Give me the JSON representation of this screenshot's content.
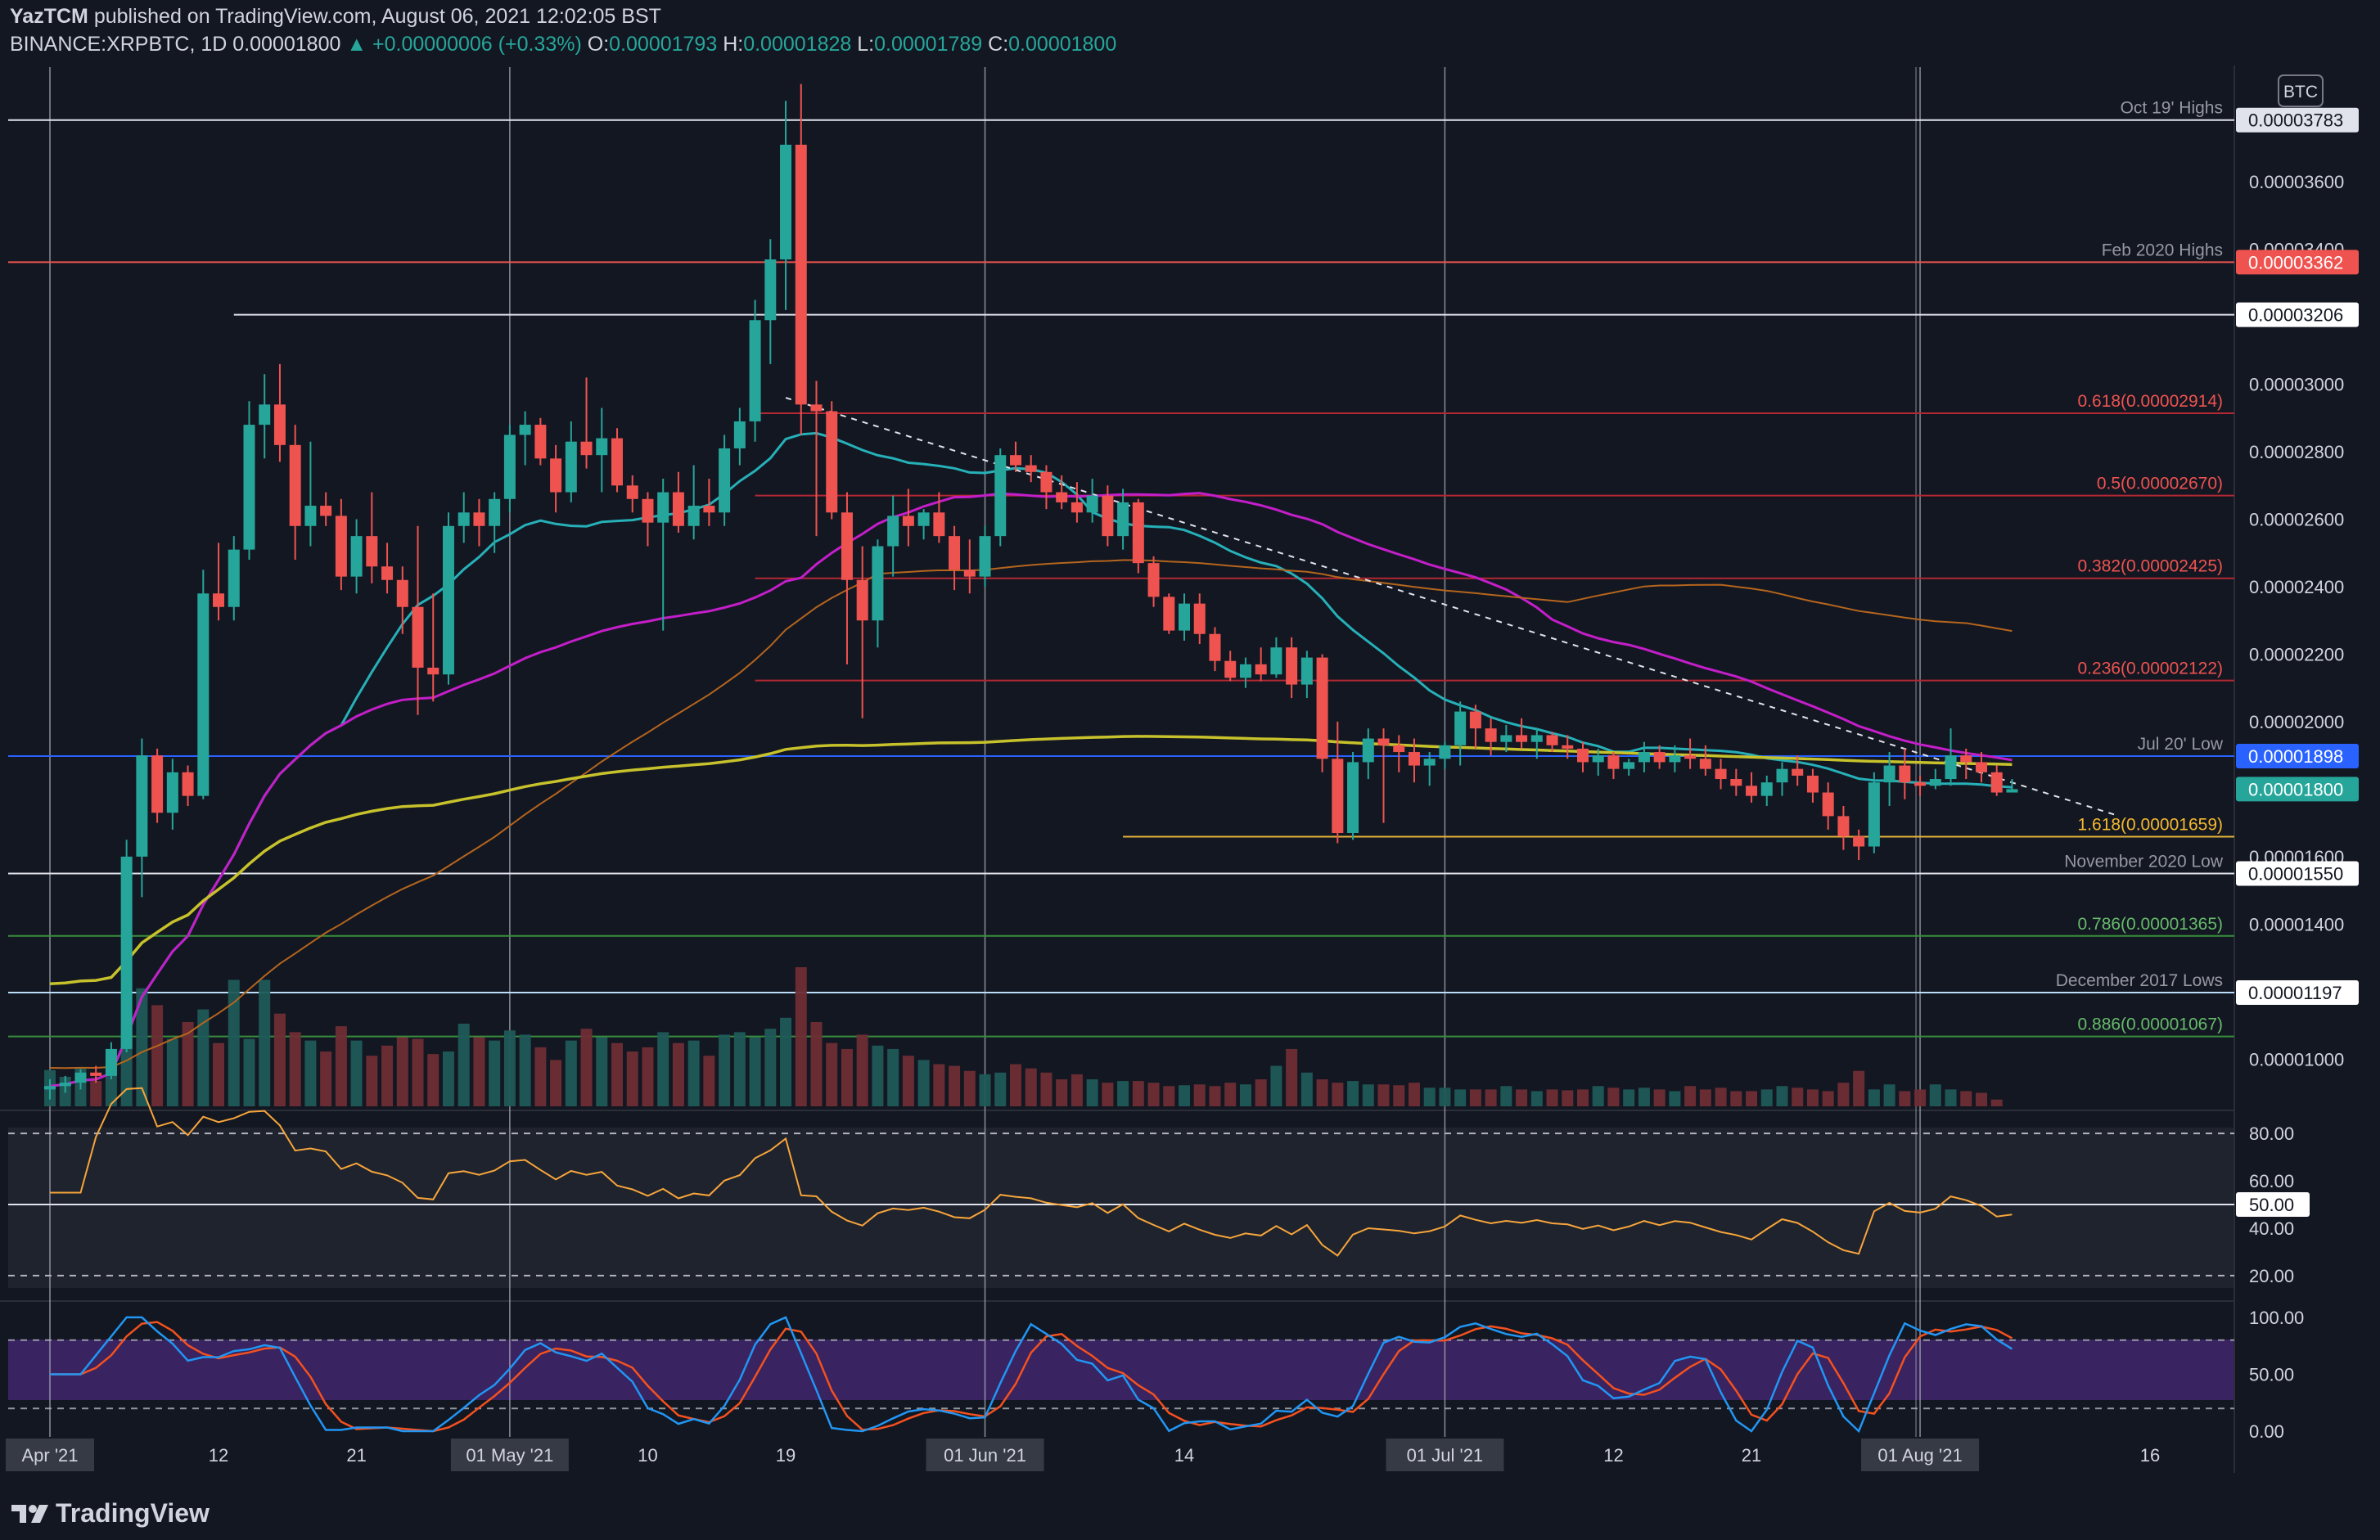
{
  "header": {
    "publisher": "YazTCM",
    "published_text": "published on TradingView.com, August 06, 2021 12:02:05 BST",
    "symbol": "BINANCE:XRPBTC, 1D",
    "last": "0.00001800",
    "change": "▲ +0.00000006 (+0.33%)",
    "o_label": "O:",
    "o": "0.00001793",
    "h_label": "H:",
    "h": "0.00001828",
    "l_label": "L:",
    "l": "0.00001789",
    "c_label": "C:",
    "c": "0.00001800"
  },
  "currency_badge": "BTC",
  "footer": {
    "brand": "TradingView",
    "logo_icon": "tradingview-logo-icon"
  },
  "colors": {
    "background": "#131722",
    "up": "#26a69a",
    "down": "#ef5350",
    "text": "#d1d4dc",
    "ma20": "#26b0b8",
    "ma50": "#c41ec9",
    "ma100": "#b5651d",
    "ma200": "#c7c22b",
    "rsi": "#f7a53a",
    "stoch_k": "#2196f3",
    "stoch_d": "#f4511e"
  },
  "chart_data": {
    "type": "candlestick",
    "title": "",
    "ylim": [
      8.6e-06,
      3.94e-05
    ],
    "first_date": "2021-04-01",
    "x_ticks": [
      {
        "label": "Apr '21",
        "date": "2021-04-01",
        "boxed": true
      },
      {
        "label": "12",
        "date": "2021-04-12"
      },
      {
        "label": "21",
        "date": "2021-04-21"
      },
      {
        "label": "01 May '21",
        "date": "2021-05-01",
        "boxed": true
      },
      {
        "label": "10",
        "date": "2021-05-10"
      },
      {
        "label": "19",
        "date": "2021-05-19"
      },
      {
        "label": "01 Jun '21",
        "date": "2021-06-01",
        "boxed": true
      },
      {
        "label": "14",
        "date": "2021-06-14"
      },
      {
        "label": "01 Jul '21",
        "date": "2021-07-01",
        "boxed": true
      },
      {
        "label": "12",
        "date": "2021-07-12"
      },
      {
        "label": "21",
        "date": "2021-07-21"
      },
      {
        "label": "01 Aug '21",
        "date": "2021-08-01",
        "boxed": true
      },
      {
        "label": "16",
        "date": "2021-08-16"
      }
    ],
    "y_ticks": [
      "0.00003600",
      "0.00003400",
      "0.00003000",
      "0.00002800",
      "0.00002600",
      "0.00002400",
      "0.00002200",
      "0.00002000",
      "0.00001600",
      "0.00001400",
      "0.00001000"
    ],
    "tick_values": [
      3.6e-05,
      3.4e-05,
      3e-05,
      2.8e-05,
      2.6e-05,
      2.4e-05,
      2.2e-05,
      2e-05,
      1.6e-05,
      1.4e-05,
      1e-05
    ],
    "levels": [
      {
        "label": "Oct 19' Highs",
        "value": 3.783e-05,
        "tag": "0.00003783",
        "color": "#e0e3eb",
        "tag_bg": "#e0e3eb",
        "tag_fg": "#131722",
        "from": "2021-04-01"
      },
      {
        "label": "Feb 2020 Highs",
        "value": 3.362e-05,
        "tag": "0.00003362",
        "color": "#ef5350",
        "tag_bg": "#ef5350",
        "tag_fg": "#ffffff",
        "from": "2021-04-01"
      },
      {
        "label": "",
        "value": 3.206e-05,
        "tag": "0.00003206",
        "color": "#e0e3eb",
        "tag_bg": "#ffffff",
        "tag_fg": "#131722",
        "from": "2021-04-13"
      },
      {
        "label": "0.618(0.00002914)",
        "value": 2.914e-05,
        "tag": "",
        "color": "#b22833",
        "label_color": "#ef5350",
        "from": "2021-05-17"
      },
      {
        "label": "0.5(0.00002670)",
        "value": 2.67e-05,
        "tag": "",
        "color": "#b22833",
        "label_color": "#ef5350",
        "from": "2021-05-17"
      },
      {
        "label": "0.382(0.00002425)",
        "value": 2.425e-05,
        "tag": "",
        "color": "#b22833",
        "label_color": "#ef5350",
        "from": "2021-05-17"
      },
      {
        "label": "0.236(0.00002122)",
        "value": 2.122e-05,
        "tag": "",
        "color": "#b22833",
        "label_color": "#ef5350",
        "from": "2021-05-17"
      },
      {
        "label": "Jul 20' Low",
        "value": 1.898e-05,
        "tag": "0.00001898",
        "color": "#2962ff",
        "tag_bg": "#2962ff",
        "tag_fg": "#ffffff",
        "from": "2021-04-01"
      },
      {
        "label": "",
        "value": 1.8e-05,
        "tag": "0.00001800",
        "color": null,
        "tag_bg": "#26a69a",
        "tag_fg": "#ffffff"
      },
      {
        "label": "1.618(0.00001659)",
        "value": 1.659e-05,
        "tag": "",
        "color": "#e6b33a",
        "label_color": "#f5b82e",
        "from": "2021-06-10"
      },
      {
        "label": "November 2020 Low",
        "value": 1.55e-05,
        "tag": "0.00001550",
        "color": "#e0e3eb",
        "tag_bg": "#ffffff",
        "tag_fg": "#131722",
        "from": "2021-04-01"
      },
      {
        "label": "0.786(0.00001365)",
        "value": 1.365e-05,
        "tag": "",
        "color": "#388e3c",
        "label_color": "#66bb6a",
        "from": "2021-04-01"
      },
      {
        "label": "December 2017 Lows",
        "value": 1.197e-05,
        "tag": "0.00001197",
        "color": "#bbdefb",
        "tag_bg": "#ffffff",
        "tag_fg": "#131722",
        "from": "2021-04-01"
      },
      {
        "label": "0.886(0.00001067)",
        "value": 1.067e-05,
        "tag": "",
        "color": "#388e3c",
        "label_color": "#66bb6a",
        "from": "2021-04-01"
      }
    ],
    "trendline": {
      "from": [
        "2021-05-19",
        2.96e-05
      ],
      "to": [
        "2021-08-14",
        1.72e-05
      ]
    },
    "candles": [
      [
        9.1e-06,
        9.4e-06,
        8.8e-06,
        9.2e-06
      ],
      [
        9.2e-06,
        9.5e-06,
        9e-06,
        9.3e-06
      ],
      [
        9.3e-06,
        9.7e-06,
        9.1e-06,
        9.6e-06
      ],
      [
        9.6e-06,
        9.8e-06,
        9.3e-06,
        9.5e-06
      ],
      [
        9.5e-06,
        1.05e-05,
        9.4e-06,
        1.03e-05
      ],
      [
        1.03e-05,
        1.65e-05,
        1.02e-05,
        1.6e-05
      ],
      [
        1.6e-05,
        1.95e-05,
        1.48e-05,
        1.9e-05
      ],
      [
        1.9e-05,
        1.92e-05,
        1.7e-05,
        1.73e-05
      ],
      [
        1.73e-05,
        1.89e-05,
        1.68e-05,
        1.85e-05
      ],
      [
        1.85e-05,
        1.87e-05,
        1.75e-05,
        1.78e-05
      ],
      [
        1.78e-05,
        2.45e-05,
        1.77e-05,
        2.38e-05
      ],
      [
        2.38e-05,
        2.53e-05,
        2.3e-05,
        2.34e-05
      ],
      [
        2.34e-05,
        2.55e-05,
        2.3e-05,
        2.51e-05
      ],
      [
        2.51e-05,
        2.95e-05,
        2.48e-05,
        2.88e-05
      ],
      [
        2.88e-05,
        3.03e-05,
        2.78e-05,
        2.94e-05
      ],
      [
        2.94e-05,
        3.06e-05,
        2.77e-05,
        2.82e-05
      ],
      [
        2.82e-05,
        2.88e-05,
        2.48e-05,
        2.58e-05
      ],
      [
        2.58e-05,
        2.83e-05,
        2.52e-05,
        2.64e-05
      ],
      [
        2.64e-05,
        2.68e-05,
        2.58e-05,
        2.61e-05
      ],
      [
        2.61e-05,
        2.66e-05,
        2.39e-05,
        2.43e-05
      ],
      [
        2.43e-05,
        2.6e-05,
        2.38e-05,
        2.55e-05
      ],
      [
        2.55e-05,
        2.68e-05,
        2.41e-05,
        2.46e-05
      ],
      [
        2.46e-05,
        2.53e-05,
        2.38e-05,
        2.42e-05
      ],
      [
        2.42e-05,
        2.46e-05,
        2.26e-05,
        2.34e-05
      ],
      [
        2.34e-05,
        2.58e-05,
        2.02e-05,
        2.16e-05
      ],
      [
        2.16e-05,
        2.38e-05,
        2.06e-05,
        2.14e-05
      ],
      [
        2.14e-05,
        2.62e-05,
        2.11e-05,
        2.58e-05
      ],
      [
        2.58e-05,
        2.68e-05,
        2.53e-05,
        2.62e-05
      ],
      [
        2.62e-05,
        2.66e-05,
        2.52e-05,
        2.58e-05
      ],
      [
        2.58e-05,
        2.68e-05,
        2.5e-05,
        2.66e-05
      ],
      [
        2.66e-05,
        2.88e-05,
        2.62e-05,
        2.85e-05
      ],
      [
        2.85e-05,
        2.92e-05,
        2.76e-05,
        2.88e-05
      ],
      [
        2.88e-05,
        2.9e-05,
        2.76e-05,
        2.78e-05
      ],
      [
        2.78e-05,
        2.82e-05,
        2.62e-05,
        2.68e-05
      ],
      [
        2.68e-05,
        2.89e-05,
        2.65e-05,
        2.83e-05
      ],
      [
        2.83e-05,
        3.02e-05,
        2.75e-05,
        2.79e-05
      ],
      [
        2.79e-05,
        2.93e-05,
        2.68e-05,
        2.84e-05
      ],
      [
        2.84e-05,
        2.87e-05,
        2.68e-05,
        2.7e-05
      ],
      [
        2.7e-05,
        2.73e-05,
        2.62e-05,
        2.66e-05
      ],
      [
        2.66e-05,
        2.68e-05,
        2.52e-05,
        2.59e-05
      ],
      [
        2.59e-05,
        2.72e-05,
        2.27e-05,
        2.68e-05
      ],
      [
        2.68e-05,
        2.74e-05,
        2.56e-05,
        2.58e-05
      ],
      [
        2.58e-05,
        2.76e-05,
        2.54e-05,
        2.64e-05
      ],
      [
        2.64e-05,
        2.72e-05,
        2.58e-05,
        2.62e-05
      ],
      [
        2.62e-05,
        2.85e-05,
        2.58e-05,
        2.81e-05
      ],
      [
        2.81e-05,
        2.93e-05,
        2.76e-05,
        2.89e-05
      ],
      [
        2.89e-05,
        3.25e-05,
        2.83e-05,
        3.19e-05
      ],
      [
        3.19e-05,
        3.43e-05,
        3.06e-05,
        3.37e-05
      ],
      [
        3.37e-05,
        3.84e-05,
        3.22e-05,
        3.71e-05
      ],
      [
        3.71e-05,
        3.89e-05,
        2.85e-05,
        2.94e-05
      ],
      [
        2.94e-05,
        3.01e-05,
        2.55e-05,
        2.92e-05
      ],
      [
        2.92e-05,
        2.95e-05,
        2.6e-05,
        2.62e-05
      ],
      [
        2.62e-05,
        2.68e-05,
        2.17e-05,
        2.42e-05
      ],
      [
        2.42e-05,
        2.52e-05,
        2.01e-05,
        2.3e-05
      ],
      [
        2.3e-05,
        2.54e-05,
        2.22e-05,
        2.52e-05
      ],
      [
        2.52e-05,
        2.67e-05,
        2.43e-05,
        2.61e-05
      ],
      [
        2.61e-05,
        2.69e-05,
        2.52e-05,
        2.58e-05
      ],
      [
        2.58e-05,
        2.63e-05,
        2.54e-05,
        2.62e-05
      ],
      [
        2.62e-05,
        2.68e-05,
        2.53e-05,
        2.55e-05
      ],
      [
        2.55e-05,
        2.58e-05,
        2.39e-05,
        2.45e-05
      ],
      [
        2.45e-05,
        2.54e-05,
        2.38e-05,
        2.43e-05
      ],
      [
        2.43e-05,
        2.58e-05,
        2.4e-05,
        2.55e-05
      ],
      [
        2.55e-05,
        2.81e-05,
        2.52e-05,
        2.79e-05
      ],
      [
        2.79e-05,
        2.83e-05,
        2.74e-05,
        2.76e-05
      ],
      [
        2.76e-05,
        2.79e-05,
        2.71e-05,
        2.74e-05
      ],
      [
        2.74e-05,
        2.76e-05,
        2.63e-05,
        2.68e-05
      ],
      [
        2.68e-05,
        2.73e-05,
        2.63e-05,
        2.65e-05
      ],
      [
        2.65e-05,
        2.71e-05,
        2.59e-05,
        2.62e-05
      ],
      [
        2.62e-05,
        2.72e-05,
        2.59e-05,
        2.67e-05
      ],
      [
        2.67e-05,
        2.7e-05,
        2.52e-05,
        2.55e-05
      ],
      [
        2.55e-05,
        2.69e-05,
        2.51e-05,
        2.65e-05
      ],
      [
        2.65e-05,
        2.66e-05,
        2.44e-05,
        2.47e-05
      ],
      [
        2.47e-05,
        2.49e-05,
        2.34e-05,
        2.37e-05
      ],
      [
        2.37e-05,
        2.38e-05,
        2.26e-05,
        2.27e-05
      ],
      [
        2.27e-05,
        2.38e-05,
        2.24e-05,
        2.35e-05
      ],
      [
        2.35e-05,
        2.38e-05,
        2.23e-05,
        2.26e-05
      ],
      [
        2.26e-05,
        2.28e-05,
        2.15e-05,
        2.18e-05
      ],
      [
        2.18e-05,
        2.21e-05,
        2.12e-05,
        2.13e-05
      ],
      [
        2.13e-05,
        2.19e-05,
        2.1e-05,
        2.17e-05
      ],
      [
        2.17e-05,
        2.22e-05,
        2.12e-05,
        2.14e-05
      ],
      [
        2.14e-05,
        2.25e-05,
        2.13e-05,
        2.22e-05
      ],
      [
        2.22e-05,
        2.25e-05,
        2.07e-05,
        2.11e-05
      ],
      [
        2.11e-05,
        2.21e-05,
        2.07e-05,
        2.19e-05
      ],
      [
        2.19e-05,
        2.2e-05,
        1.85e-05,
        1.89e-05
      ],
      [
        1.89e-05,
        2e-05,
        1.64e-05,
        1.67e-05
      ],
      [
        1.67e-05,
        1.91e-05,
        1.65e-05,
        1.88e-05
      ],
      [
        1.88e-05,
        1.98e-05,
        1.83e-05,
        1.95e-05
      ],
      [
        1.95e-05,
        1.98e-05,
        1.7e-05,
        1.93e-05
      ],
      [
        1.93e-05,
        1.96e-05,
        1.85e-05,
        1.91e-05
      ],
      [
        1.91e-05,
        1.95e-05,
        1.82e-05,
        1.87e-05
      ],
      [
        1.87e-05,
        1.91e-05,
        1.81e-05,
        1.89e-05
      ],
      [
        1.89e-05,
        1.94e-05,
        1.86e-05,
        1.93e-05
      ],
      [
        1.93e-05,
        2.06e-05,
        1.87e-05,
        2.03e-05
      ],
      [
        2.03e-05,
        2.05e-05,
        1.92e-05,
        1.98e-05
      ],
      [
        1.98e-05,
        2.01e-05,
        1.9e-05,
        1.94e-05
      ],
      [
        1.94e-05,
        1.99e-05,
        1.91e-05,
        1.96e-05
      ],
      [
        1.96e-05,
        2.01e-05,
        1.92e-05,
        1.94e-05
      ],
      [
        1.94e-05,
        1.98e-05,
        1.89e-05,
        1.96e-05
      ],
      [
        1.96e-05,
        1.97e-05,
        1.91e-05,
        1.93e-05
      ],
      [
        1.93e-05,
        1.96e-05,
        1.89e-05,
        1.92e-05
      ],
      [
        1.92e-05,
        1.94e-05,
        1.85e-05,
        1.88e-05
      ],
      [
        1.88e-05,
        1.92e-05,
        1.84e-05,
        1.9e-05
      ],
      [
        1.9e-05,
        1.91e-05,
        1.83e-05,
        1.86e-05
      ],
      [
        1.86e-05,
        1.89e-05,
        1.84e-05,
        1.88e-05
      ],
      [
        1.88e-05,
        1.94e-05,
        1.85e-05,
        1.91e-05
      ],
      [
        1.91e-05,
        1.93e-05,
        1.86e-05,
        1.88e-05
      ],
      [
        1.88e-05,
        1.93e-05,
        1.85e-05,
        1.9e-05
      ],
      [
        1.9e-05,
        1.95e-05,
        1.86e-05,
        1.89e-05
      ],
      [
        1.89e-05,
        1.93e-05,
        1.84e-05,
        1.86e-05
      ],
      [
        1.86e-05,
        1.89e-05,
        1.8e-05,
        1.83e-05
      ],
      [
        1.83e-05,
        1.86e-05,
        1.78e-05,
        1.81e-05
      ],
      [
        1.81e-05,
        1.85e-05,
        1.76e-05,
        1.78e-05
      ],
      [
        1.78e-05,
        1.84e-05,
        1.75e-05,
        1.82e-05
      ],
      [
        1.82e-05,
        1.88e-05,
        1.78e-05,
        1.86e-05
      ],
      [
        1.86e-05,
        1.9e-05,
        1.81e-05,
        1.84e-05
      ],
      [
        1.84e-05,
        1.86e-05,
        1.76e-05,
        1.79e-05
      ],
      [
        1.79e-05,
        1.82e-05,
        1.68e-05,
        1.72e-05
      ],
      [
        1.72e-05,
        1.75e-05,
        1.62e-05,
        1.66e-05
      ],
      [
        1.66e-05,
        1.68e-05,
        1.59e-05,
        1.63e-05
      ],
      [
        1.63e-05,
        1.85e-05,
        1.61e-05,
        1.82e-05
      ],
      [
        1.82e-05,
        1.91e-05,
        1.75e-05,
        1.87e-05
      ],
      [
        1.87e-05,
        1.92e-05,
        1.77e-05,
        1.82e-05
      ],
      [
        1.82e-05,
        1.84e-05,
        1.78e-05,
        1.81e-05
      ],
      [
        1.81e-05,
        1.86e-05,
        1.8e-05,
        1.83e-05
      ],
      [
        1.83e-05,
        1.98e-05,
        1.81e-05,
        1.9e-05
      ],
      [
        1.9e-05,
        1.92e-05,
        1.83e-05,
        1.88e-05
      ],
      [
        1.88e-05,
        1.91e-05,
        1.82e-05,
        1.85e-05
      ],
      [
        1.85e-05,
        1.87e-05,
        1.78e-05,
        1.79e-05
      ],
      [
        1.79e-05,
        1.83e-05,
        1.79e-05,
        1.8e-05
      ]
    ],
    "volumes": [
      43,
      35,
      46,
      30,
      55,
      95,
      140,
      120,
      80,
      100,
      115,
      75,
      150,
      80,
      150,
      110,
      88,
      78,
      65,
      95,
      78,
      60,
      72,
      82,
      80,
      62,
      65,
      98,
      82,
      78,
      90,
      85,
      70,
      55,
      78,
      92,
      82,
      75,
      65,
      70,
      88,
      75,
      78,
      60,
      85,
      88,
      82,
      92,
      105,
      165,
      100,
      75,
      68,
      85,
      72,
      68,
      60,
      55,
      50,
      48,
      42,
      38,
      40,
      50,
      45,
      40,
      32,
      38,
      32,
      28,
      30,
      30,
      28,
      24,
      25,
      26,
      24,
      28,
      26,
      32,
      48,
      68,
      40,
      32,
      28,
      30,
      26,
      26,
      25,
      28,
      22,
      22,
      20,
      20,
      20,
      24,
      20,
      18,
      20,
      19,
      20,
      24,
      22,
      20,
      22,
      20,
      18,
      24,
      20,
      22,
      18,
      18,
      20,
      24,
      22,
      20,
      18,
      28,
      42,
      20,
      26,
      18,
      20,
      26,
      20,
      18,
      16,
      8
    ],
    "rsi": {
      "upper": 80,
      "lower": 20,
      "mid": 50,
      "ylim": [
        12,
        88
      ],
      "ticks": [
        "80.00",
        "60.00",
        "40.00",
        "20.00"
      ],
      "tick_values": [
        80,
        60,
        40,
        20
      ],
      "current_tag": "50.00"
    },
    "stoch": {
      "upper": 80,
      "lower": 20,
      "ylim": [
        -5,
        110
      ],
      "ticks": [
        "100.00",
        "50.00",
        "0.00"
      ],
      "tick_values": [
        100,
        50,
        0
      ]
    }
  }
}
